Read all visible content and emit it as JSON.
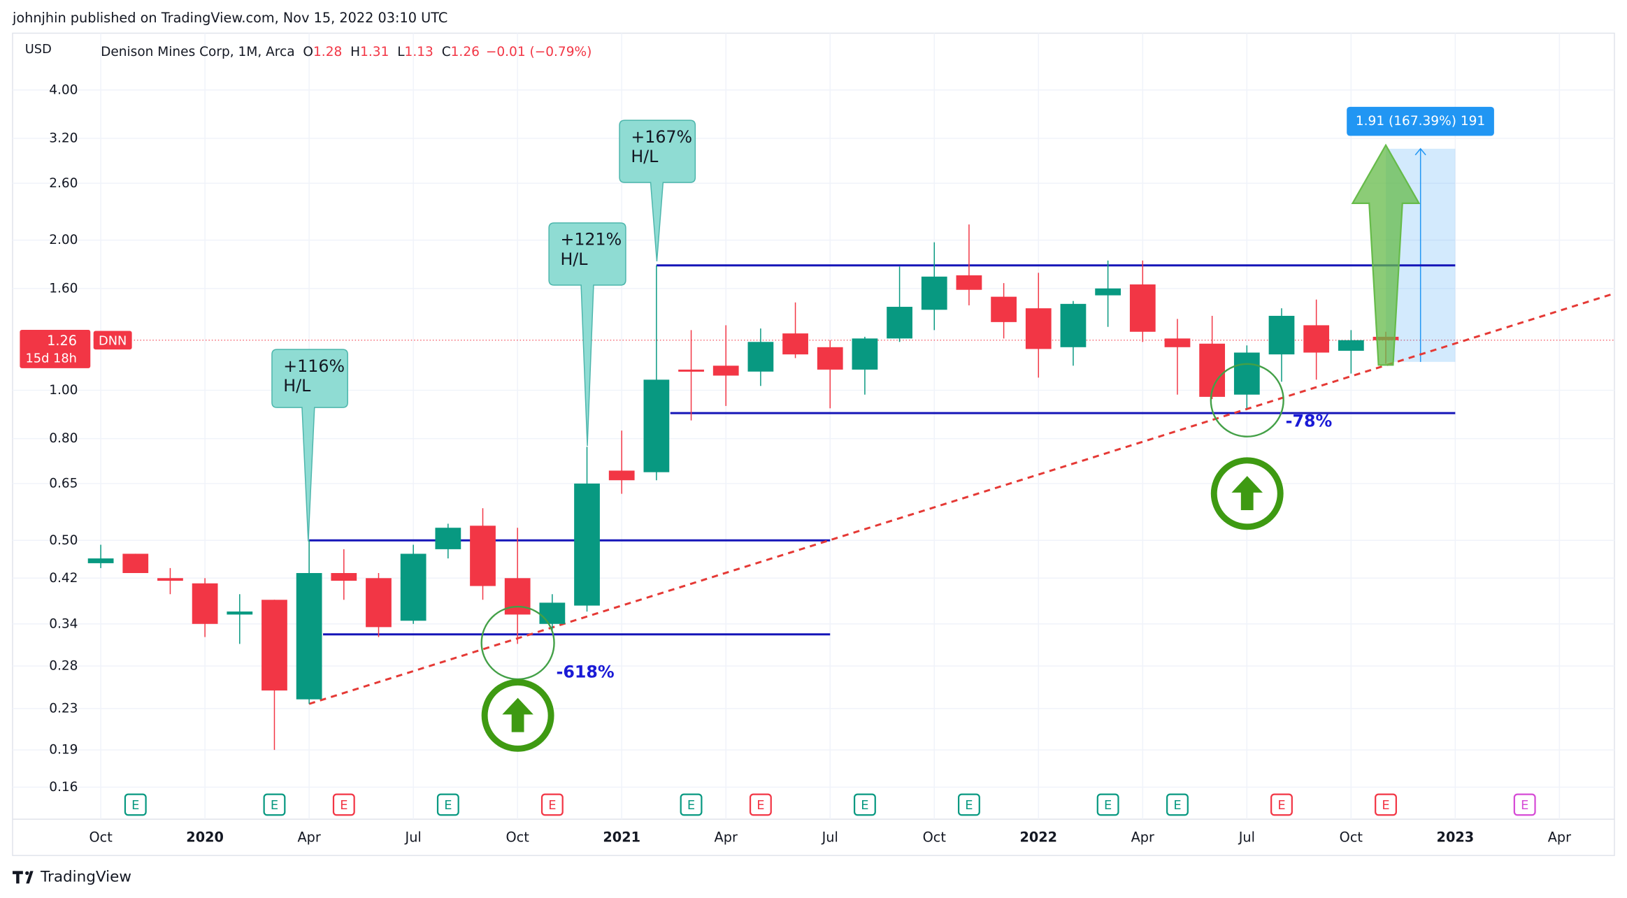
{
  "header": "johnjhin published on TradingView.com, Nov 15, 2022 03:10 UTC",
  "footer": "TradingView",
  "chart_data": {
    "type": "candlestick",
    "currency": "USD",
    "legend": {
      "name": "Denison Mines Corp, 1M, Arca",
      "o_label": "O",
      "o": 1.28,
      "h_label": "H",
      "h": 1.31,
      "l_label": "L",
      "l": 1.13,
      "c_label": "C",
      "c": 1.26,
      "change": "−0.01 (−0.79%)"
    },
    "categories": [
      "Oct",
      null,
      null,
      "2020",
      null,
      null,
      "Apr",
      null,
      null,
      "Jul",
      null,
      null,
      "Oct",
      null,
      null,
      "2021",
      null,
      null,
      "Apr",
      null,
      null,
      "Jul",
      null,
      null,
      "Oct",
      null,
      null,
      "2022",
      null,
      null,
      "Apr",
      null,
      null,
      "Jul",
      null,
      null,
      "Oct",
      null,
      null,
      "2023",
      null,
      null,
      "Apr"
    ],
    "open": [
      0.45,
      0.47,
      0.42,
      0.41,
      0.355,
      0.38,
      0.24,
      0.43,
      0.42,
      0.345,
      0.48,
      0.535,
      0.42,
      0.34,
      0.37,
      0.69,
      0.685,
      1.1,
      1.12,
      1.09,
      1.3,
      1.22,
      1.1,
      1.27,
      1.45,
      1.7,
      1.54,
      1.46,
      1.22,
      1.55,
      1.63,
      1.27,
      1.24,
      0.98,
      1.18,
      1.35,
      1.2,
      1.28,
      null,
      null,
      null,
      null,
      null
    ],
    "high": [
      0.49,
      0.47,
      0.44,
      0.42,
      0.39,
      0.38,
      0.5,
      0.48,
      0.43,
      0.49,
      0.54,
      0.58,
      0.53,
      0.39,
      0.77,
      0.83,
      1.78,
      1.32,
      1.35,
      1.33,
      1.5,
      1.26,
      1.28,
      1.77,
      1.98,
      2.15,
      1.64,
      1.72,
      1.51,
      1.82,
      1.82,
      1.39,
      1.41,
      1.23,
      1.46,
      1.52,
      1.32,
      1.31,
      null,
      null,
      null,
      null,
      null
    ],
    "low": [
      0.44,
      0.43,
      0.39,
      0.32,
      0.31,
      0.19,
      0.235,
      0.38,
      0.32,
      0.34,
      0.46,
      0.38,
      0.31,
      0.33,
      0.36,
      0.62,
      0.66,
      0.87,
      0.93,
      1.02,
      1.16,
      0.92,
      0.98,
      1.25,
      1.32,
      1.48,
      1.27,
      1.06,
      1.12,
      1.34,
      1.25,
      0.98,
      0.96,
      0.92,
      1.04,
      1.05,
      1.08,
      1.13,
      null,
      null,
      null,
      null,
      null
    ],
    "close": [
      0.46,
      0.43,
      0.415,
      0.34,
      0.36,
      0.25,
      0.43,
      0.415,
      0.335,
      0.47,
      0.53,
      0.405,
      0.355,
      0.375,
      0.65,
      0.66,
      1.05,
      1.09,
      1.07,
      1.25,
      1.18,
      1.1,
      1.27,
      1.47,
      1.69,
      1.59,
      1.37,
      1.21,
      1.49,
      1.6,
      1.31,
      1.22,
      0.97,
      1.19,
      1.41,
      1.19,
      1.26,
      1.26,
      null,
      null,
      null,
      null,
      null
    ],
    "up_color": "#089981",
    "down_color": "#f23645",
    "log_scale": true,
    "grid": true,
    "ylim": [
      0.138,
      5.2
    ],
    "yticks": [
      {
        "value": 4,
        "label": "4.00"
      },
      {
        "value": 3.2,
        "label": "3.20"
      },
      {
        "value": 2.6,
        "label": "2.60"
      },
      {
        "value": 2,
        "label": "2.00"
      },
      {
        "value": 1.6,
        "label": "1.60"
      },
      {
        "value": 1,
        "label": "1.00"
      },
      {
        "value": 0.8,
        "label": "0.80"
      },
      0.65,
      {
        "value": 0.5,
        "label": "0.50"
      },
      0.42,
      0.34,
      0.28,
      0.23,
      0.19,
      0.16
    ],
    "last_price": {
      "price": 1.26,
      "symbol": "DNN",
      "countdown": "15d 18h"
    },
    "hlines": [
      {
        "price": 0.5,
        "from": 6,
        "to": 21,
        "color": "#1515b8"
      },
      {
        "price": 0.324,
        "from": 6.4,
        "to": 21,
        "color": "#1515b8"
      },
      {
        "price": 1.78,
        "from": 16,
        "to": 39,
        "color": "#1515b8"
      },
      {
        "price": 0.9,
        "from": 16.4,
        "to": 39,
        "color": "#1515b8"
      }
    ],
    "trendline": {
      "from": [
        6,
        0.235
      ],
      "to": [
        43.6,
        1.565
      ],
      "color": "#e53935"
    },
    "callouts": [
      {
        "lines": [
          "+116%",
          "H/L"
        ]
      },
      {
        "lines": [
          "+121%",
          "H/L"
        ]
      },
      {
        "lines": [
          "+167%",
          "H/L"
        ]
      }
    ],
    "fib_labels": [
      "-618%",
      "-78%"
    ],
    "measure": {
      "from": 37,
      "to": 39,
      "low": 1.14,
      "high": 3.05,
      "label": "1.91 (167.39%) 191"
    },
    "earnings_label": "E",
    "earnings": [
      {
        "month": 1,
        "color": "#089981"
      },
      {
        "month": 5,
        "color": "#089981"
      },
      {
        "month": 7,
        "color": "#f23645"
      },
      {
        "month": 10,
        "color": "#089981"
      },
      {
        "month": 13,
        "color": "#f23645"
      },
      {
        "month": 17,
        "color": "#089981"
      },
      {
        "month": 19,
        "color": "#f23645"
      },
      {
        "month": 22,
        "color": "#089981"
      },
      {
        "month": 25,
        "color": "#089981"
      },
      {
        "month": 29,
        "color": "#089981"
      },
      {
        "month": 31,
        "color": "#089981"
      },
      {
        "month": 34,
        "color": "#f23645"
      },
      {
        "month": 37,
        "color": "#f23645"
      },
      {
        "month": 41,
        "color": "#d64bd6"
      }
    ]
  }
}
